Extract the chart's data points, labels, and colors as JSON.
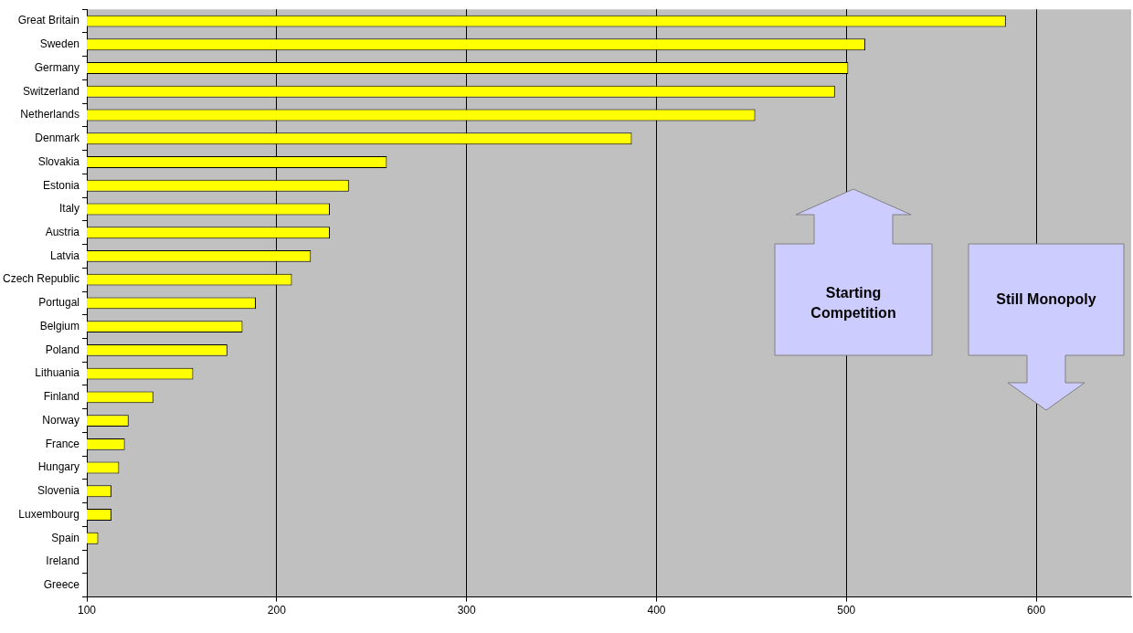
{
  "chart_data": {
    "type": "bar",
    "orientation": "horizontal",
    "categories": [
      "Great Britain",
      "Sweden",
      "Germany",
      "Switzerland",
      "Netherlands",
      "Denmark",
      "Slovakia",
      "Estonia",
      "Italy",
      "Austria",
      "Latvia",
      "Czech Republic",
      "Portugal",
      "Belgium",
      "Poland",
      "Lithuania",
      "Finland",
      "Norway",
      "France",
      "Hungary",
      "Slovenia",
      "Luxembourg",
      "Spain",
      "Ireland",
      "Greece"
    ],
    "values": [
      584,
      510,
      501,
      494,
      452,
      387,
      258,
      238,
      228,
      228,
      218,
      208,
      189,
      182,
      174,
      156,
      135,
      122,
      120,
      117,
      113,
      113,
      106,
      null,
      null
    ],
    "color": "#ffff00",
    "xlim": [
      100,
      650
    ],
    "xticks": [
      100,
      200,
      300,
      400,
      500,
      600
    ],
    "grid": "x",
    "annotations": [
      "Starting Competition",
      "Still Monopoly"
    ]
  }
}
